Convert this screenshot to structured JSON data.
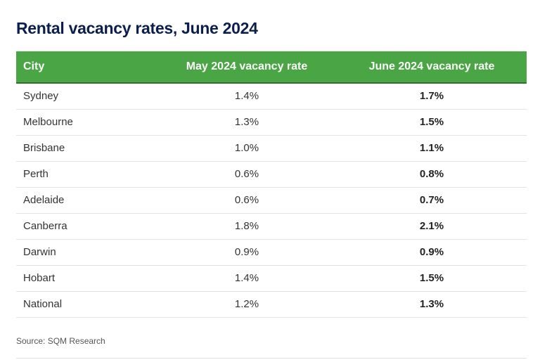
{
  "title": "Rental vacancy rates, June 2024",
  "table": {
    "headers": {
      "city": "City",
      "may": "May 2024 vacancy rate",
      "june": "June 2024 vacancy rate"
    },
    "rows": [
      {
        "city": "Sydney",
        "may": "1.4%",
        "june": "1.7%"
      },
      {
        "city": "Melbourne",
        "may": "1.3%",
        "june": "1.5%"
      },
      {
        "city": "Brisbane",
        "may": "1.0%",
        "june": "1.1%"
      },
      {
        "city": "Perth",
        "may": "0.6%",
        "june": "0.8%"
      },
      {
        "city": "Adelaide",
        "may": "0.6%",
        "june": "0.7%"
      },
      {
        "city": "Canberra",
        "may": "1.8%",
        "june": "2.1%"
      },
      {
        "city": "Darwin",
        "may": "0.9%",
        "june": "0.9%"
      },
      {
        "city": "Hobart",
        "may": "1.4%",
        "june": "1.5%"
      },
      {
        "city": "National",
        "may": "1.2%",
        "june": "1.3%"
      }
    ]
  },
  "source": "Source: SQM Research",
  "colors": {
    "header_bg": "#4aa544",
    "title": "#0b1f4d"
  }
}
